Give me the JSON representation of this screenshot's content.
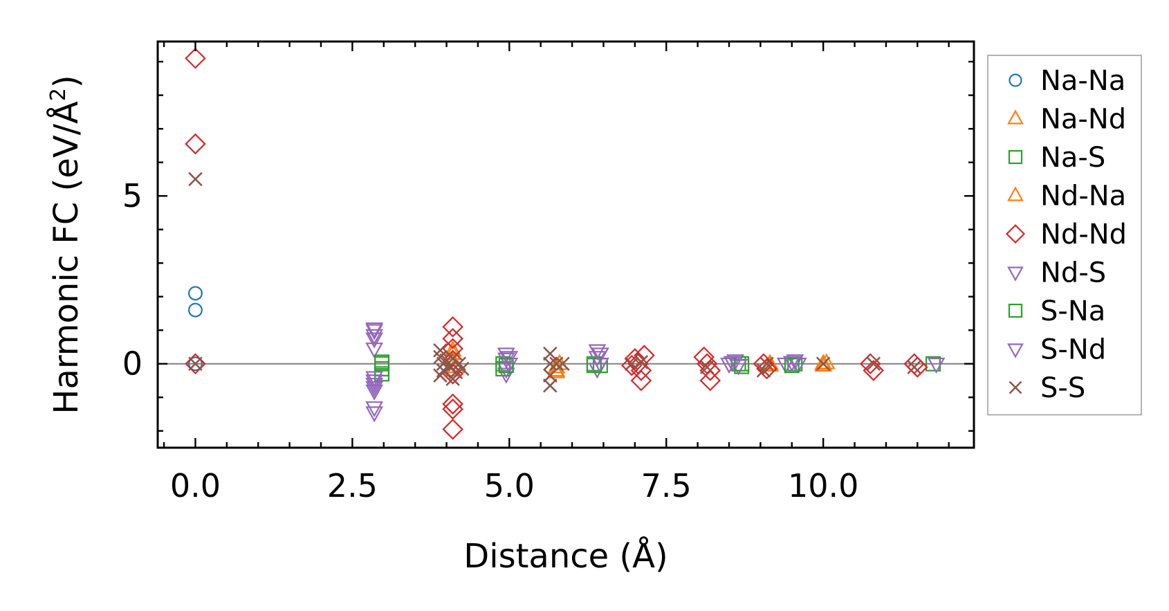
{
  "chart_data": {
    "type": "scatter",
    "title": "",
    "xlabel": "Distance (Å)",
    "ylabel_main": "Harmonic FC (eV/Å",
    "ylabel_sup": "2",
    "ylabel_close": ")",
    "xlim": [
      -0.6,
      12.4
    ],
    "ylim": [
      -2.5,
      9.6
    ],
    "xticks": [
      0.0,
      2.5,
      5.0,
      7.5,
      10.0
    ],
    "xtick_labels": [
      "0.0",
      "2.5",
      "5.0",
      "7.5",
      "10.0"
    ],
    "yticks": [
      0,
      5
    ],
    "ytick_labels": [
      "0",
      "5"
    ],
    "x_minor_step": 0.5,
    "y_minor_step": 1.0,
    "zero_line": true,
    "legend_position": "outside right",
    "series": [
      {
        "name": "Na-Na",
        "marker": "circle",
        "color": "#1f77b4",
        "points": [
          [
            0,
            2.1
          ],
          [
            0,
            1.6
          ],
          [
            0,
            0.0
          ]
        ]
      },
      {
        "name": "Na-Nd",
        "marker": "triangle-up",
        "color": "#ff7f0e",
        "points": [
          [
            4.1,
            0.4
          ],
          [
            4.1,
            0.1
          ],
          [
            4.1,
            -0.2
          ],
          [
            5.75,
            -0.1
          ],
          [
            5.75,
            -0.25
          ],
          [
            5.8,
            0.0
          ],
          [
            9.15,
            -0.05
          ],
          [
            10.0,
            -0.05
          ],
          [
            10.05,
            0.02
          ]
        ]
      },
      {
        "name": "Na-S",
        "marker": "square",
        "color": "#2ca02c",
        "points": [
          [
            2.97,
            0.0
          ],
          [
            2.97,
            -0.15
          ],
          [
            2.97,
            -0.3
          ],
          [
            4.9,
            0.0
          ],
          [
            4.9,
            -0.15
          ],
          [
            6.35,
            0.0
          ],
          [
            6.45,
            -0.05
          ],
          [
            8.65,
            0.0
          ],
          [
            8.7,
            -0.08
          ],
          [
            9.55,
            0.0
          ],
          [
            11.75,
            0.0
          ]
        ]
      },
      {
        "name": "Nd-Na",
        "marker": "triangle-up",
        "color": "#ff7f0e",
        "points": [
          [
            4.1,
            0.3
          ],
          [
            4.15,
            -0.1
          ],
          [
            5.75,
            -0.2
          ],
          [
            9.15,
            0.0
          ],
          [
            10.0,
            0.0
          ]
        ]
      },
      {
        "name": "Nd-Nd",
        "marker": "diamond",
        "color": "#d62728",
        "points": [
          [
            0,
            9.1
          ],
          [
            0,
            6.55
          ],
          [
            0,
            0.0
          ],
          [
            4.1,
            1.1
          ],
          [
            4.1,
            0.75
          ],
          [
            4.1,
            0.45
          ],
          [
            4.1,
            0.1
          ],
          [
            4.1,
            -0.3
          ],
          [
            4.1,
            -1.2
          ],
          [
            4.1,
            -1.35
          ],
          [
            4.1,
            -1.95
          ],
          [
            7.0,
            0.15
          ],
          [
            7.05,
            0.0
          ],
          [
            7.1,
            -0.2
          ],
          [
            7.1,
            -0.5
          ],
          [
            7.15,
            0.25
          ],
          [
            6.95,
            -0.05
          ],
          [
            8.1,
            0.2
          ],
          [
            8.15,
            0.0
          ],
          [
            8.2,
            -0.2
          ],
          [
            8.2,
            -0.5
          ],
          [
            9.05,
            0.0
          ],
          [
            9.1,
            -0.15
          ],
          [
            10.75,
            0.0
          ],
          [
            10.8,
            -0.2
          ],
          [
            11.45,
            0.0
          ],
          [
            11.5,
            -0.1
          ]
        ]
      },
      {
        "name": "Nd-S",
        "marker": "triangle-down",
        "color": "#9467bd",
        "points": [
          [
            2.85,
            1.0
          ],
          [
            2.85,
            0.85
          ],
          [
            2.85,
            0.75
          ],
          [
            2.85,
            0.45
          ],
          [
            2.85,
            -0.4
          ],
          [
            2.85,
            -0.6
          ],
          [
            2.85,
            -0.8
          ],
          [
            2.85,
            -1.3
          ],
          [
            2.85,
            -1.45
          ],
          [
            4.95,
            0.3
          ],
          [
            4.95,
            0.15
          ],
          [
            5.0,
            0.0
          ],
          [
            4.95,
            -0.15
          ],
          [
            4.95,
            -0.3
          ],
          [
            6.4,
            0.4
          ],
          [
            6.4,
            0.2
          ],
          [
            6.45,
            0.0
          ],
          [
            6.4,
            -0.15
          ],
          [
            8.5,
            0.0
          ],
          [
            8.6,
            0.1
          ],
          [
            8.65,
            -0.05
          ],
          [
            9.4,
            0.0
          ],
          [
            9.55,
            0.1
          ],
          [
            9.6,
            0.0
          ],
          [
            11.8,
            0.0
          ]
        ]
      },
      {
        "name": "S-Na",
        "marker": "square",
        "color": "#2ca02c",
        "points": [
          [
            2.97,
            0.05
          ],
          [
            4.95,
            -0.05
          ],
          [
            6.35,
            -0.05
          ],
          [
            8.7,
            0.0
          ],
          [
            9.5,
            -0.05
          ]
        ]
      },
      {
        "name": "S-Nd",
        "marker": "triangle-down",
        "color": "#9467bd",
        "points": [
          [
            2.85,
            1.05
          ],
          [
            2.85,
            -0.5
          ],
          [
            2.85,
            -0.7
          ],
          [
            5.0,
            0.2
          ],
          [
            6.45,
            0.3
          ],
          [
            8.55,
            0.05
          ],
          [
            9.5,
            0.05
          ]
        ]
      },
      {
        "name": "S-S",
        "marker": "x",
        "color": "#8c564b",
        "points": [
          [
            0,
            5.5
          ],
          [
            0,
            0.0
          ],
          [
            3.9,
            0.4
          ],
          [
            3.9,
            0.2
          ],
          [
            3.95,
            0.0
          ],
          [
            3.95,
            -0.2
          ],
          [
            3.9,
            -0.35
          ],
          [
            4.0,
            0.1
          ],
          [
            4.05,
            -0.1
          ],
          [
            4.1,
            0.15
          ],
          [
            4.15,
            -0.25
          ],
          [
            4.2,
            0.0
          ],
          [
            4.25,
            -0.15
          ],
          [
            4.1,
            -0.45
          ],
          [
            5.65,
            0.3
          ],
          [
            5.65,
            0.0
          ],
          [
            5.65,
            -0.35
          ],
          [
            5.65,
            -0.65
          ],
          [
            5.75,
            0.0
          ],
          [
            5.85,
            0.0
          ],
          [
            6.95,
            0.0
          ],
          [
            7.1,
            0.05
          ],
          [
            8.15,
            -0.1
          ],
          [
            9.05,
            -0.2
          ],
          [
            9.1,
            0.0
          ],
          [
            10.0,
            0.0
          ],
          [
            10.8,
            0.0
          ],
          [
            11.45,
            -0.1
          ]
        ]
      }
    ]
  }
}
